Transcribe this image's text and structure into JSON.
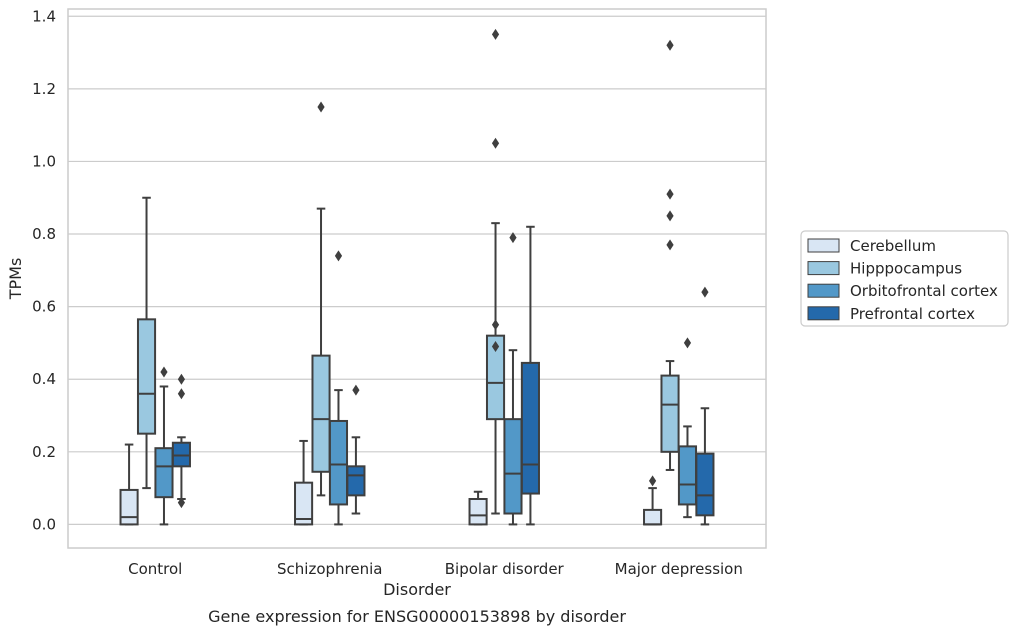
{
  "chart_data": {
    "type": "box",
    "caption": "Gene expression for ENSG00000153898 by disorder",
    "xlabel": "Disorder",
    "ylabel": "TPMs",
    "ylim": [
      -0.065,
      1.42
    ],
    "yticks": [
      0.0,
      0.2,
      0.4,
      0.6,
      0.8,
      1.0,
      1.2,
      1.4
    ],
    "ytick_labels": [
      "0.0",
      "0.2",
      "0.4",
      "0.6",
      "0.8",
      "1.0",
      "1.2",
      "1.4"
    ],
    "grid": "horizontal",
    "legend_position": "right",
    "categories": [
      "Control",
      "Schizophrenia",
      "Bipolar disorder",
      "Major depression"
    ],
    "series": [
      {
        "name": "Cerebellum",
        "color": "#d9e6f4",
        "boxes": [
          {
            "whislo": 0.0,
            "q1": 0.0,
            "med": 0.02,
            "q3": 0.095,
            "whishi": 0.22,
            "fliers": []
          },
          {
            "whislo": 0.0,
            "q1": 0.0,
            "med": 0.015,
            "q3": 0.115,
            "whishi": 0.23,
            "fliers": []
          },
          {
            "whislo": 0.0,
            "q1": 0.0,
            "med": 0.025,
            "q3": 0.07,
            "whishi": 0.09,
            "fliers": []
          },
          {
            "whislo": 0.0,
            "q1": 0.0,
            "med": 0.0,
            "q3": 0.04,
            "whishi": 0.1,
            "fliers": [
              0.12
            ]
          }
        ]
      },
      {
        "name": "Hipppocampus",
        "color": "#9ac8e0",
        "boxes": [
          {
            "whislo": 0.1,
            "q1": 0.25,
            "med": 0.36,
            "q3": 0.565,
            "whishi": 0.9,
            "fliers": []
          },
          {
            "whislo": 0.08,
            "q1": 0.145,
            "med": 0.29,
            "q3": 0.465,
            "whishi": 0.87,
            "fliers": [
              1.15
            ]
          },
          {
            "whislo": 0.03,
            "q1": 0.29,
            "med": 0.39,
            "q3": 0.52,
            "whishi": 0.83,
            "fliers": [
              0.55,
              0.49,
              1.05,
              1.35
            ]
          },
          {
            "whislo": 0.15,
            "q1": 0.2,
            "med": 0.33,
            "q3": 0.41,
            "whishi": 0.45,
            "fliers": [
              0.77,
              0.85,
              0.91,
              1.32
            ]
          }
        ]
      },
      {
        "name": "Orbitofrontal cortex",
        "color": "#5298c8",
        "boxes": [
          {
            "whislo": 0.0,
            "q1": 0.075,
            "med": 0.16,
            "q3": 0.21,
            "whishi": 0.38,
            "fliers": [
              0.42
            ]
          },
          {
            "whislo": 0.0,
            "q1": 0.055,
            "med": 0.165,
            "q3": 0.285,
            "whishi": 0.37,
            "fliers": [
              0.74
            ]
          },
          {
            "whislo": 0.0,
            "q1": 0.03,
            "med": 0.14,
            "q3": 0.29,
            "whishi": 0.48,
            "fliers": [
              0.79
            ]
          },
          {
            "whislo": 0.02,
            "q1": 0.055,
            "med": 0.11,
            "q3": 0.215,
            "whishi": 0.27,
            "fliers": [
              0.5
            ]
          }
        ]
      },
      {
        "name": "Prefrontal cortex",
        "color": "#2469ab",
        "boxes": [
          {
            "whislo": 0.07,
            "q1": 0.16,
            "med": 0.19,
            "q3": 0.225,
            "whishi": 0.24,
            "fliers": [
              0.06,
              0.36,
              0.4
            ]
          },
          {
            "whislo": 0.03,
            "q1": 0.08,
            "med": 0.135,
            "q3": 0.16,
            "whishi": 0.24,
            "fliers": [
              0.37
            ]
          },
          {
            "whislo": 0.0,
            "q1": 0.085,
            "med": 0.165,
            "q3": 0.445,
            "whishi": 0.82,
            "fliers": []
          },
          {
            "whislo": 0.0,
            "q1": 0.025,
            "med": 0.08,
            "q3": 0.195,
            "whishi": 0.32,
            "fliers": [
              0.64
            ]
          }
        ]
      }
    ]
  }
}
